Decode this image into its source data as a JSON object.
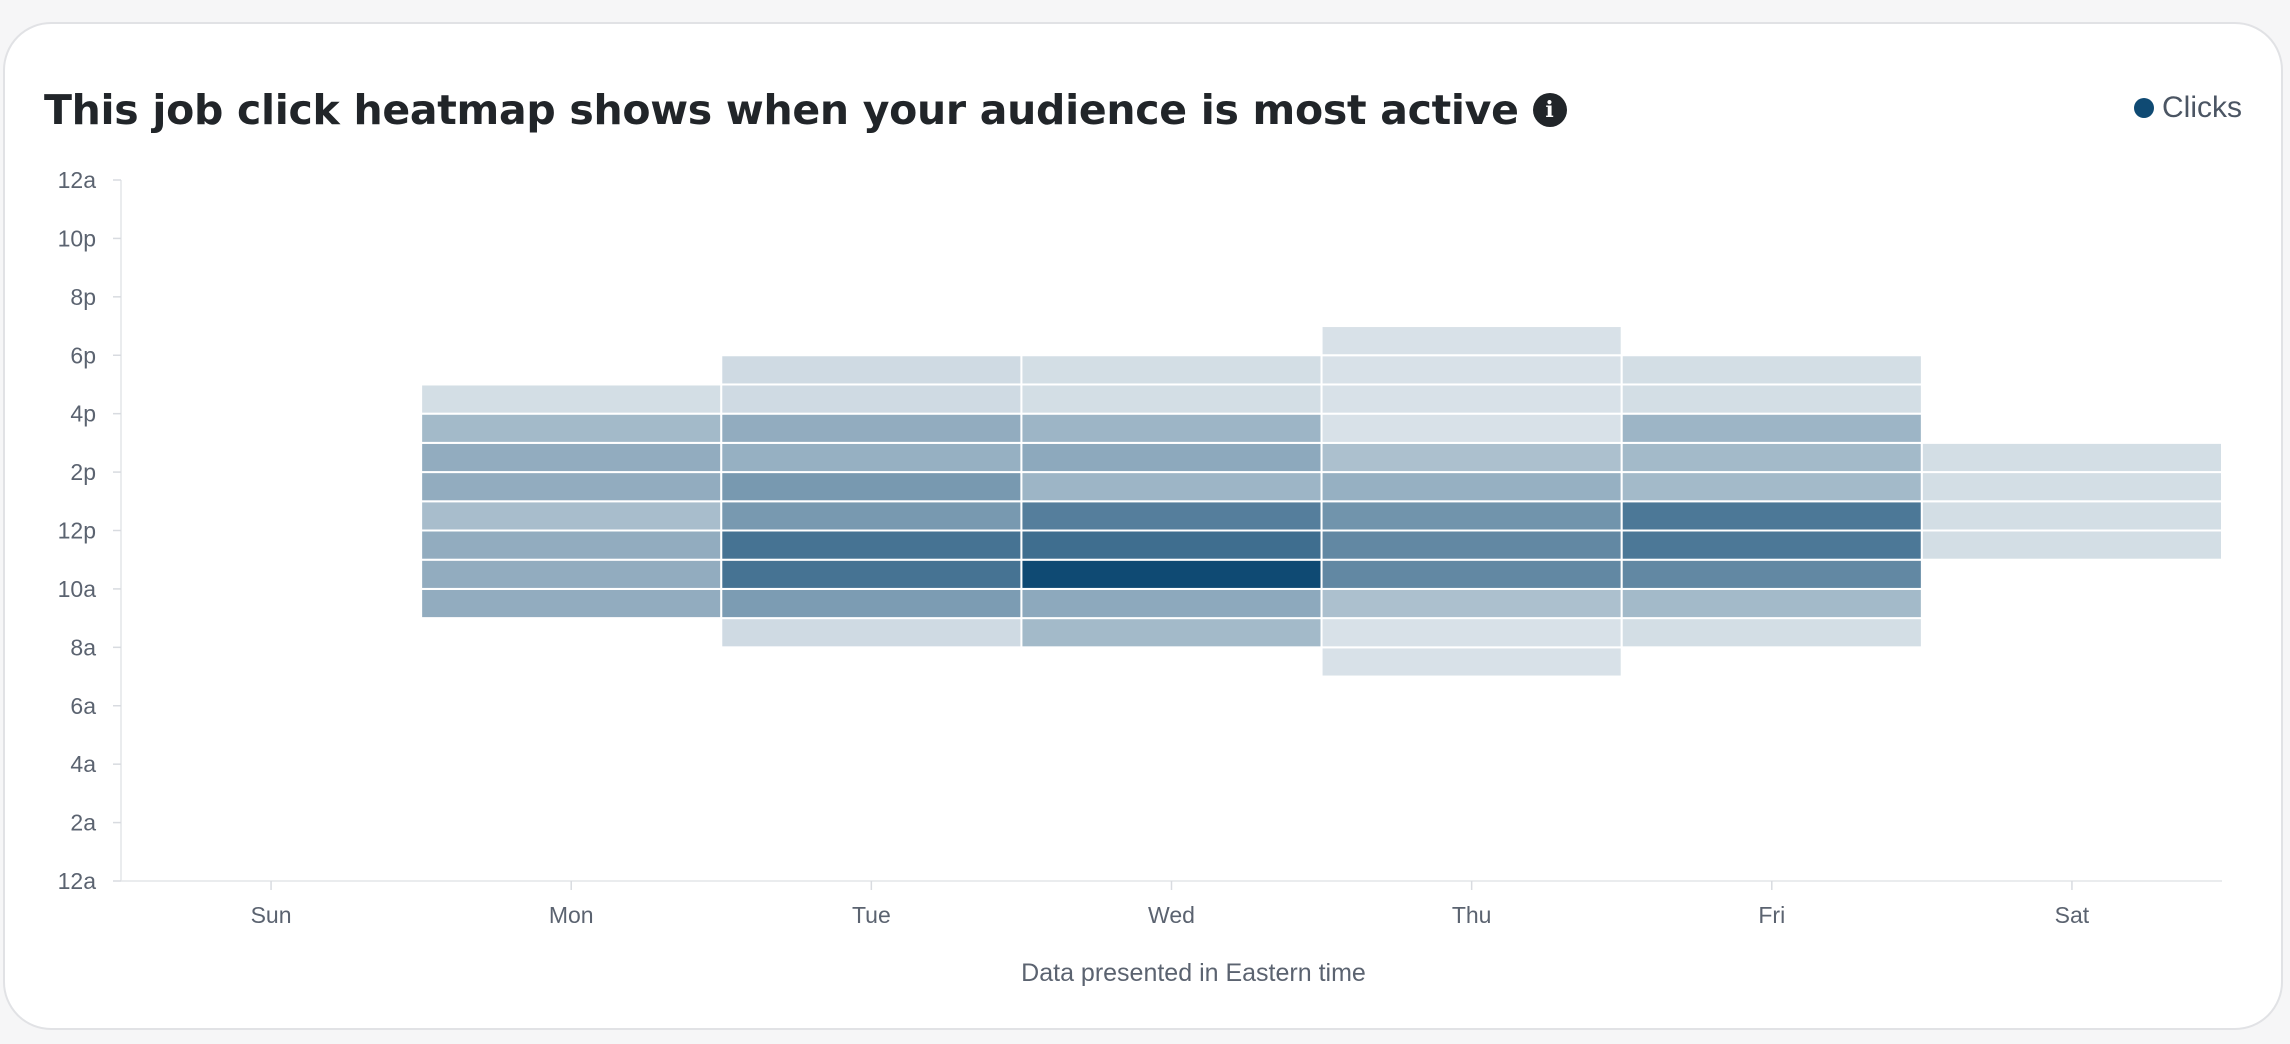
{
  "title": "This job click heatmap shows when your audience is most active",
  "info_icon": "info-icon",
  "legend": {
    "label": "Clicks",
    "color": "#0f4a73"
  },
  "chart_data": {
    "type": "heatmap",
    "title": "This job click heatmap shows when your audience is most active",
    "xlabel": "Data presented in Eastern time",
    "ylabel": "",
    "x_categories": [
      "Sun",
      "Mon",
      "Tue",
      "Wed",
      "Thu",
      "Fri",
      "Sat"
    ],
    "y_tick_labels": [
      "12a",
      "2a",
      "4a",
      "6a",
      "8a",
      "10a",
      "12p",
      "2p",
      "4p",
      "6p",
      "8p",
      "10p",
      "12a"
    ],
    "y_unit": "hour of day",
    "ylim": [
      0,
      24
    ],
    "series_name": "Clicks",
    "color_max": "#0f4a73",
    "color_scale": "relative intensity 0-1",
    "cells": [
      {
        "day": "Mon",
        "hour": 9,
        "value": 0.4
      },
      {
        "day": "Mon",
        "hour": 10,
        "value": 0.4
      },
      {
        "day": "Mon",
        "hour": 11,
        "value": 0.4
      },
      {
        "day": "Mon",
        "hour": 12,
        "value": 0.3
      },
      {
        "day": "Mon",
        "hour": 13,
        "value": 0.4
      },
      {
        "day": "Mon",
        "hour": 14,
        "value": 0.4
      },
      {
        "day": "Mon",
        "hour": 15,
        "value": 0.32
      },
      {
        "day": "Mon",
        "hour": 16,
        "value": 0.1
      },
      {
        "day": "Tue",
        "hour": 8,
        "value": 0.12
      },
      {
        "day": "Tue",
        "hour": 9,
        "value": 0.5
      },
      {
        "day": "Tue",
        "hour": 10,
        "value": 0.75
      },
      {
        "day": "Tue",
        "hour": 11,
        "value": 0.75
      },
      {
        "day": "Tue",
        "hour": 12,
        "value": 0.52
      },
      {
        "day": "Tue",
        "hour": 13,
        "value": 0.52
      },
      {
        "day": "Tue",
        "hour": 14,
        "value": 0.38
      },
      {
        "day": "Tue",
        "hour": 15,
        "value": 0.4
      },
      {
        "day": "Tue",
        "hour": 16,
        "value": 0.12
      },
      {
        "day": "Tue",
        "hour": 17,
        "value": 0.12
      },
      {
        "day": "Wed",
        "hour": 8,
        "value": 0.32
      },
      {
        "day": "Wed",
        "hour": 9,
        "value": 0.42
      },
      {
        "day": "Wed",
        "hour": 10,
        "value": 1.0
      },
      {
        "day": "Wed",
        "hour": 11,
        "value": 0.78
      },
      {
        "day": "Wed",
        "hour": 12,
        "value": 0.68
      },
      {
        "day": "Wed",
        "hour": 13,
        "value": 0.35
      },
      {
        "day": "Wed",
        "hour": 14,
        "value": 0.42
      },
      {
        "day": "Wed",
        "hour": 15,
        "value": 0.35
      },
      {
        "day": "Wed",
        "hour": 16,
        "value": 0.1
      },
      {
        "day": "Wed",
        "hour": 17,
        "value": 0.1
      },
      {
        "day": "Thu",
        "hour": 7,
        "value": 0.08
      },
      {
        "day": "Thu",
        "hour": 8,
        "value": 0.08
      },
      {
        "day": "Thu",
        "hour": 9,
        "value": 0.28
      },
      {
        "day": "Thu",
        "hour": 10,
        "value": 0.62
      },
      {
        "day": "Thu",
        "hour": 11,
        "value": 0.62
      },
      {
        "day": "Thu",
        "hour": 12,
        "value": 0.55
      },
      {
        "day": "Thu",
        "hour": 13,
        "value": 0.38
      },
      {
        "day": "Thu",
        "hour": 14,
        "value": 0.28
      },
      {
        "day": "Thu",
        "hour": 15,
        "value": 0.08
      },
      {
        "day": "Thu",
        "hour": 16,
        "value": 0.08
      },
      {
        "day": "Thu",
        "hour": 17,
        "value": 0.08
      },
      {
        "day": "Thu",
        "hour": 18,
        "value": 0.08
      },
      {
        "day": "Fri",
        "hour": 8,
        "value": 0.1
      },
      {
        "day": "Fri",
        "hour": 9,
        "value": 0.32
      },
      {
        "day": "Fri",
        "hour": 10,
        "value": 0.62
      },
      {
        "day": "Fri",
        "hour": 11,
        "value": 0.72
      },
      {
        "day": "Fri",
        "hour": 12,
        "value": 0.72
      },
      {
        "day": "Fri",
        "hour": 13,
        "value": 0.32
      },
      {
        "day": "Fri",
        "hour": 14,
        "value": 0.32
      },
      {
        "day": "Fri",
        "hour": 15,
        "value": 0.35
      },
      {
        "day": "Fri",
        "hour": 16,
        "value": 0.1
      },
      {
        "day": "Fri",
        "hour": 17,
        "value": 0.1
      },
      {
        "day": "Sat",
        "hour": 11,
        "value": 0.1
      },
      {
        "day": "Sat",
        "hour": 12,
        "value": 0.1
      },
      {
        "day": "Sat",
        "hour": 13,
        "value": 0.1
      },
      {
        "day": "Sat",
        "hour": 14,
        "value": 0.1
      }
    ],
    "grid": false,
    "legend_position": "top-right"
  }
}
